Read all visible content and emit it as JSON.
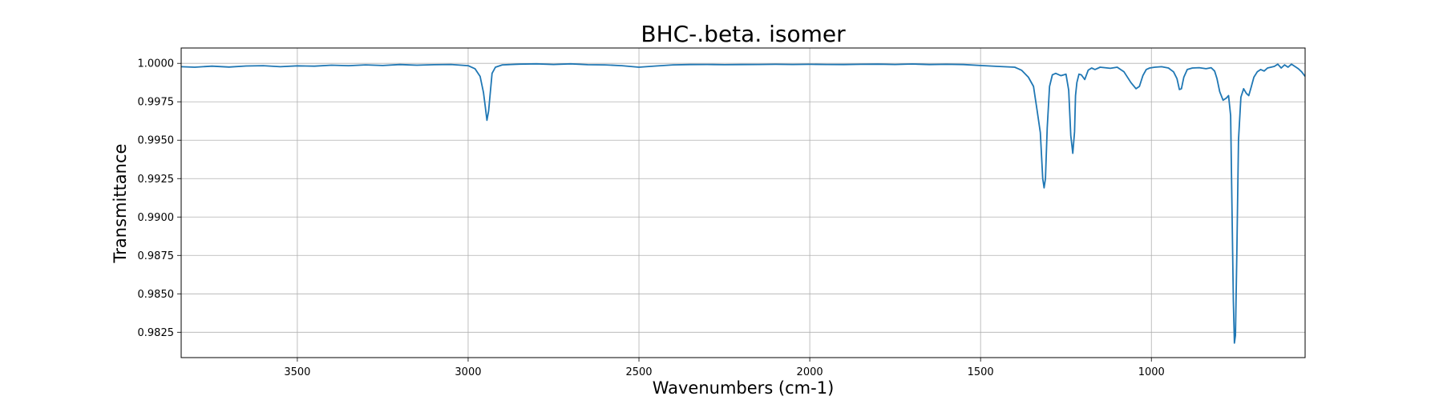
{
  "chart_data": {
    "type": "line",
    "title": "BHC-.beta. isomer",
    "xlabel": "Wavenumbers (cm-1)",
    "ylabel": "Transmittance",
    "xlim": [
      3840,
      550
    ],
    "ylim": [
      0.98085,
      1.001
    ],
    "x_reversed": true,
    "grid": true,
    "xticks": [
      3500,
      3000,
      2500,
      2000,
      1500,
      1000
    ],
    "xtick_labels": [
      "3500",
      "3000",
      "2500",
      "2000",
      "1500",
      "1000"
    ],
    "yticks": [
      0.9825,
      0.985,
      0.9875,
      0.99,
      0.9925,
      0.995,
      0.9975,
      1.0
    ],
    "ytick_labels": [
      "0.9825",
      "0.9850",
      "0.9875",
      "0.9900",
      "0.9925",
      "0.9950",
      "0.9975",
      "1.0000"
    ],
    "series": [
      {
        "color": "#1f77b4",
        "x": [
          3840,
          3800,
          3750,
          3700,
          3650,
          3600,
          3550,
          3500,
          3450,
          3400,
          3350,
          3300,
          3250,
          3200,
          3150,
          3100,
          3050,
          3000,
          2980,
          2965,
          2955,
          2950,
          2945,
          2940,
          2930,
          2920,
          2900,
          2850,
          2800,
          2750,
          2700,
          2650,
          2600,
          2550,
          2500,
          2450,
          2400,
          2350,
          2300,
          2250,
          2200,
          2150,
          2100,
          2050,
          2000,
          1950,
          1900,
          1850,
          1800,
          1750,
          1700,
          1650,
          1600,
          1550,
          1500,
          1450,
          1400,
          1380,
          1360,
          1345,
          1335,
          1325,
          1318,
          1314,
          1310,
          1305,
          1298,
          1290,
          1280,
          1265,
          1250,
          1242,
          1236,
          1230,
          1225,
          1222,
          1218,
          1212,
          1205,
          1195,
          1185,
          1175,
          1165,
          1150,
          1120,
          1100,
          1080,
          1060,
          1045,
          1035,
          1025,
          1015,
          1005,
          990,
          970,
          950,
          935,
          925,
          918,
          912,
          905,
          895,
          880,
          860,
          840,
          825,
          815,
          808,
          800,
          790,
          780,
          774,
          768,
          764,
          760,
          757,
          754,
          750,
          745,
          738,
          730,
          722,
          715,
          708,
          700,
          690,
          680,
          670,
          660,
          650,
          640,
          630,
          620,
          610,
          600,
          590,
          580,
          570,
          560,
          550
        ],
        "y": [
          0.99978,
          0.99975,
          0.99982,
          0.99976,
          0.99983,
          0.99985,
          0.99978,
          0.99984,
          0.99982,
          0.99988,
          0.99985,
          0.9999,
          0.99986,
          0.99992,
          0.99988,
          0.99991,
          0.99993,
          0.99985,
          0.99965,
          0.99915,
          0.9981,
          0.9972,
          0.9963,
          0.9969,
          0.99935,
          0.99975,
          0.9999,
          0.99995,
          0.99997,
          0.99993,
          0.99997,
          0.99991,
          0.9999,
          0.99985,
          0.99975,
          0.99983,
          0.9999,
          0.99992,
          0.99993,
          0.99991,
          0.99992,
          0.99993,
          0.99994,
          0.99993,
          0.99994,
          0.99993,
          0.99992,
          0.99994,
          0.99995,
          0.99993,
          0.99996,
          0.99992,
          0.99994,
          0.99992,
          0.99986,
          0.9998,
          0.99975,
          0.99955,
          0.9991,
          0.9985,
          0.997,
          0.9955,
          0.9925,
          0.9919,
          0.9925,
          0.9958,
          0.9985,
          0.99925,
          0.99935,
          0.9992,
          0.9993,
          0.99825,
          0.9953,
          0.99415,
          0.99555,
          0.9979,
          0.99875,
          0.9993,
          0.99925,
          0.99895,
          0.99955,
          0.9997,
          0.9996,
          0.99975,
          0.99968,
          0.99975,
          0.99945,
          0.99875,
          0.99835,
          0.9985,
          0.9992,
          0.9996,
          0.9997,
          0.99975,
          0.99978,
          0.9997,
          0.99945,
          0.999,
          0.9983,
          0.99835,
          0.9991,
          0.9996,
          0.9997,
          0.99972,
          0.99965,
          0.99972,
          0.9995,
          0.999,
          0.99815,
          0.9976,
          0.99775,
          0.9979,
          0.9966,
          0.9905,
          0.9845,
          0.9818,
          0.9823,
          0.9875,
          0.995,
          0.9978,
          0.99835,
          0.99805,
          0.9979,
          0.99845,
          0.9991,
          0.99945,
          0.9996,
          0.9995,
          0.9997,
          0.99975,
          0.9998,
          0.99995,
          0.9997,
          0.9999,
          0.99975,
          0.99995,
          0.9998,
          0.99965,
          0.99945,
          0.99915
        ]
      }
    ]
  }
}
